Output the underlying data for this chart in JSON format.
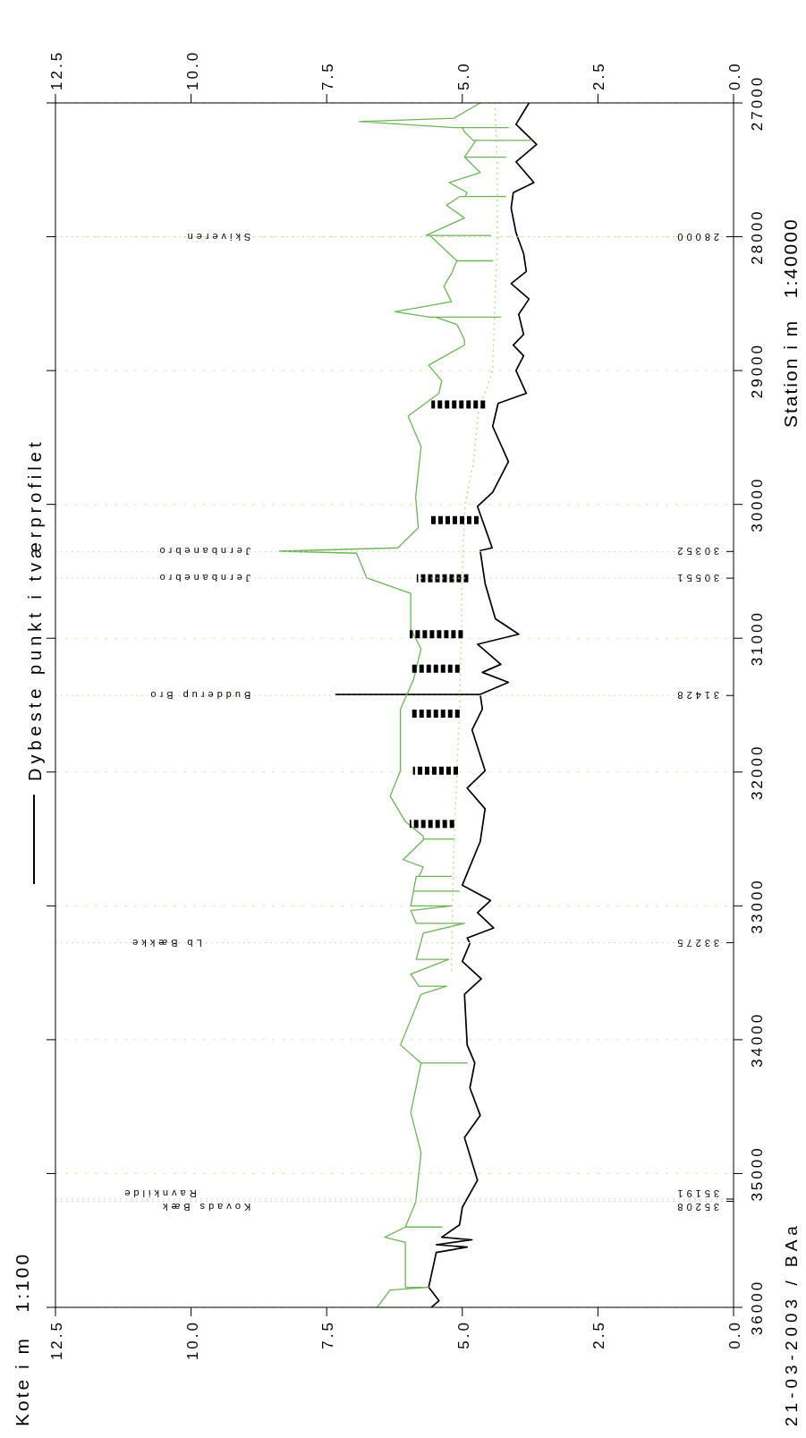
{
  "chart_data": {
    "type": "line",
    "ylabel": "Kote i m   1:100",
    "y2label": "Station i m   1:40000",
    "xlim": [
      12.5,
      0
    ],
    "xticks": [
      {
        "value": 12.5,
        "label": "12.5"
      },
      {
        "value": 10,
        "label": "10.0"
      },
      {
        "value": 7.5,
        "label": "7.5"
      },
      {
        "value": 5,
        "label": "5.0"
      },
      {
        "value": 2.5,
        "label": "2.5"
      },
      {
        "value": 0,
        "label": "0.0"
      }
    ],
    "x2lim": [
      12.5,
      0
    ],
    "x2ticks": [
      {
        "value": 12.5,
        "label": "12.5"
      },
      {
        "value": 10,
        "label": "10.0"
      },
      {
        "value": 7.5,
        "label": "7.5"
      },
      {
        "value": 5,
        "label": "5.0"
      },
      {
        "value": 2.5,
        "label": "2.5"
      },
      {
        "value": 0,
        "label": "0.0"
      }
    ],
    "ylim": [
      36000,
      27000
    ],
    "yticks": [
      {
        "value": 36000,
        "label": null
      },
      {
        "value": 35000,
        "label": null
      },
      {
        "value": 34000,
        "label": null
      },
      {
        "value": 33000,
        "label": null
      },
      {
        "value": 32000,
        "label": null
      },
      {
        "value": 31000,
        "label": null
      },
      {
        "value": 30000,
        "label": null
      },
      {
        "value": 29000,
        "label": null
      },
      {
        "value": 28000,
        "label": null
      },
      {
        "value": 27000,
        "label": null
      }
    ],
    "y2lim": [
      36000,
      27000
    ],
    "y2ticks": [
      36000,
      35000,
      34000,
      33000,
      32000,
      31000,
      30000,
      29000,
      28000,
      27000
    ],
    "grid": "y",
    "legend": "left",
    "marker": "none",
    "series": [
      {
        "name": "Dybeste punkt i tværprofilet",
        "color": "#000000",
        "values": [
          27000,
          27160,
          27310,
          27440,
          27595,
          27670,
          27785,
          27970,
          28125,
          28260,
          28350,
          28465,
          28580,
          28730,
          28810,
          28890,
          29000,
          29170,
          29245,
          29417,
          29680,
          29910,
          30015,
          30325,
          30345,
          30590,
          30855,
          30970,
          31045,
          31195,
          31255,
          31330,
          31420,
          31420,
          31420,
          31530,
          31685,
          31990,
          32120,
          32275,
          32520,
          32845,
          32960,
          33050,
          33165,
          33240,
          33280,
          33415,
          33545,
          33660,
          34040,
          34174,
          34360,
          34565,
          34732,
          35050,
          35253,
          35383,
          35476,
          35495,
          35532,
          35550,
          35590,
          35850,
          35950,
          36000
        ],
        "x": [
          3.77,
          4.01,
          3.63,
          4.01,
          3.68,
          4.06,
          4.1,
          4.01,
          3.87,
          3.82,
          4.1,
          3.77,
          3.96,
          3.87,
          4.06,
          3.87,
          4.01,
          3.82,
          4.34,
          4.44,
          4.15,
          4.44,
          4.72,
          4.45,
          4.67,
          4.58,
          4.39,
          3.96,
          4.72,
          4.29,
          4.63,
          4.15,
          4.67,
          7.33,
          4.67,
          4.63,
          4.82,
          4.58,
          4.91,
          4.58,
          4.67,
          5.0,
          4.48,
          4.72,
          4.42,
          4.91,
          4.86,
          5.0,
          4.65,
          4.96,
          4.91,
          4.77,
          4.86,
          4.67,
          4.96,
          4.72,
          5.0,
          5.05,
          5.38,
          4.82,
          5.48,
          4.91,
          5.48,
          5.62,
          5.43,
          5.57
        ]
      },
      {
        "color": "#6fb35a",
        "values": [
          27000,
          27114,
          27140,
          27185,
          27185,
          27185,
          27216,
          27280,
          27280,
          27280,
          27405,
          27405,
          27405,
          27520,
          27595,
          27670,
          27700,
          27700,
          27700,
          27765,
          27860,
          27990,
          27990,
          27990,
          28180,
          28180,
          28180,
          28275,
          28370,
          28485,
          28560,
          28600,
          28600,
          28600,
          28655,
          28770,
          28810,
          28960,
          29075,
          29170,
          29340,
          29570,
          29945,
          30175,
          30325,
          30350,
          30365,
          30550,
          30665,
          30930,
          31080,
          31310,
          31530,
          31990,
          32180,
          32370,
          32480,
          32500,
          32500,
          32500,
          32655,
          32710,
          32780,
          32780,
          32780,
          32890,
          32890,
          32890,
          33000,
          33000,
          33035,
          33130,
          33130,
          33205,
          33400,
          33400,
          33510,
          33600,
          33600,
          33660,
          34040,
          34174,
          34174,
          34174,
          34545,
          34845,
          35215,
          35400,
          35400,
          35400,
          35476,
          35515,
          35850,
          35850,
          35870,
          36000
        ],
        "x": [
          4.67,
          5.15,
          6.9,
          5.15,
          4.15,
          5.0,
          4.96,
          4.8,
          3.72,
          4.75,
          4.96,
          4.2,
          4.96,
          4.67,
          5.24,
          4.91,
          4.95,
          4.2,
          5.05,
          5.29,
          4.96,
          5.67,
          4.48,
          5.6,
          5.1,
          4.44,
          5.1,
          5.2,
          5.34,
          5.2,
          6.24,
          5.6,
          4.29,
          5.5,
          5.1,
          4.96,
          4.96,
          5.62,
          5.38,
          5.43,
          6.0,
          5.76,
          5.86,
          5.81,
          6.19,
          8.37,
          6.95,
          6.76,
          5.95,
          5.95,
          5.76,
          5.9,
          6.14,
          6.14,
          6.33,
          6.05,
          5.72,
          5.72,
          5.15,
          5.7,
          6.09,
          5.72,
          5.8,
          5.2,
          5.85,
          5.9,
          5.06,
          5.9,
          5.95,
          5.2,
          5.95,
          5.85,
          4.96,
          5.72,
          5.85,
          5.25,
          5.95,
          5.8,
          5.29,
          5.76,
          6.14,
          5.76,
          4.91,
          5.76,
          5.95,
          5.76,
          5.86,
          6.05,
          5.38,
          6.05,
          6.43,
          6.05,
          6.05,
          5.62,
          6.33,
          6.57
        ]
      },
      {
        "color": "#b8d98f",
        "line_style": "dotted",
        "values": [
          27000,
          27500,
          28000,
          28500,
          29000,
          29300,
          29700,
          30000,
          30500,
          31000,
          31500,
          32000,
          32500,
          33000,
          33500
        ],
        "x": [
          4.4,
          4.35,
          4.35,
          4.4,
          4.44,
          4.7,
          4.8,
          4.95,
          5.0,
          5.02,
          5.05,
          5.1,
          5.15,
          5.18,
          5.2
        ]
      },
      {
        "color": "#000000",
        "line_style": "dashed",
        "x": [
          4.58,
          5.57,
          null,
          4.7,
          5.62,
          null,
          4.89,
          5.84,
          null,
          4.99,
          5.97,
          null,
          5.05,
          5.93,
          null,
          5.05,
          5.95,
          null,
          5.08,
          5.91,
          null,
          5.15,
          5.97
        ],
        "values": [
          29254,
          29254,
          null,
          30117,
          30117,
          null,
          30553,
          30553,
          null,
          30970,
          30970,
          null,
          31227,
          31227,
          null,
          31563,
          31563,
          null,
          31989,
          31989,
          null,
          32388,
          32388
        ]
      }
    ],
    "ref_lines": [
      {
        "axis": "y",
        "value": 28000,
        "label": "28000"
      },
      {
        "axis": "y",
        "value": 30352,
        "label": "30352"
      },
      {
        "axis": "y",
        "value": 30551,
        "label": "30551"
      },
      {
        "axis": "y",
        "value": 31428,
        "label": "31428"
      },
      {
        "axis": "y",
        "value": 33275,
        "label": "33275"
      },
      {
        "axis": "y",
        "value": 35191,
        "label": "35191"
      },
      {
        "axis": "y",
        "value": 35208,
        "label": "35208"
      }
    ],
    "annotations": [
      {
        "text": "Skiveren",
        "x": 8.9,
        "y": 28000
      },
      {
        "text": "Jernbanebro",
        "x": 8.9,
        "y": 30352
      },
      {
        "text": "Jernbanebro",
        "x": 8.9,
        "y": 30551
      },
      {
        "text": "Budderup Bro",
        "x": 8.9,
        "y": 31428
      },
      {
        "text": "Lb Bække",
        "x": 9.8,
        "y": 33275
      },
      {
        "text": "Ravnkilde",
        "x": 9.9,
        "y": 35191
      },
      {
        "text": "Kovads Bæk",
        "x": 8.9,
        "y": 35208
      },
      "21-03-2003 / BAa"
    ]
  }
}
